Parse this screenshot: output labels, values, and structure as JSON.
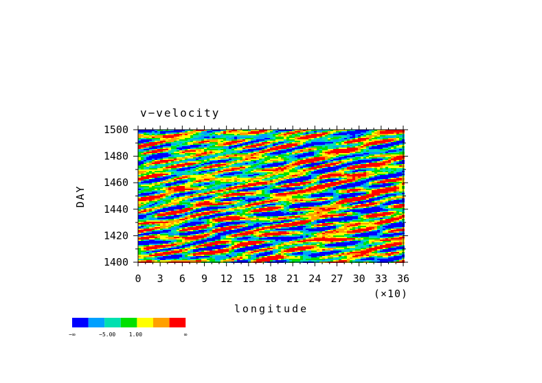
{
  "chart_data": {
    "type": "heatmap",
    "title": "v−velocity",
    "xlabel": "longitude",
    "ylabel": "DAY",
    "x_tick_labels": [
      "0",
      "3",
      "6",
      "9",
      "12",
      "15",
      "18",
      "21",
      "24",
      "27",
      "30",
      "33",
      "36"
    ],
    "x_scale_label": "(×10)",
    "xlim": [
      0,
      36
    ],
    "y_tick_labels": [
      "1400",
      "1420",
      "1440",
      "1460",
      "1480",
      "1500"
    ],
    "ylim": [
      1400,
      1500
    ],
    "colorbar": {
      "colors": [
        "#0000ff",
        "#00a0ff",
        "#00e0b0",
        "#00e000",
        "#ffff00",
        "#ffa000",
        "#ff0000"
      ],
      "tick_labels": [
        "−∞",
        "−5.00",
        "1.00",
        "∞"
      ]
    },
    "field_description": "Noisy, horizontally elongated streaks of v-velocity values over longitude 0-360 and days 1400-1500."
  }
}
